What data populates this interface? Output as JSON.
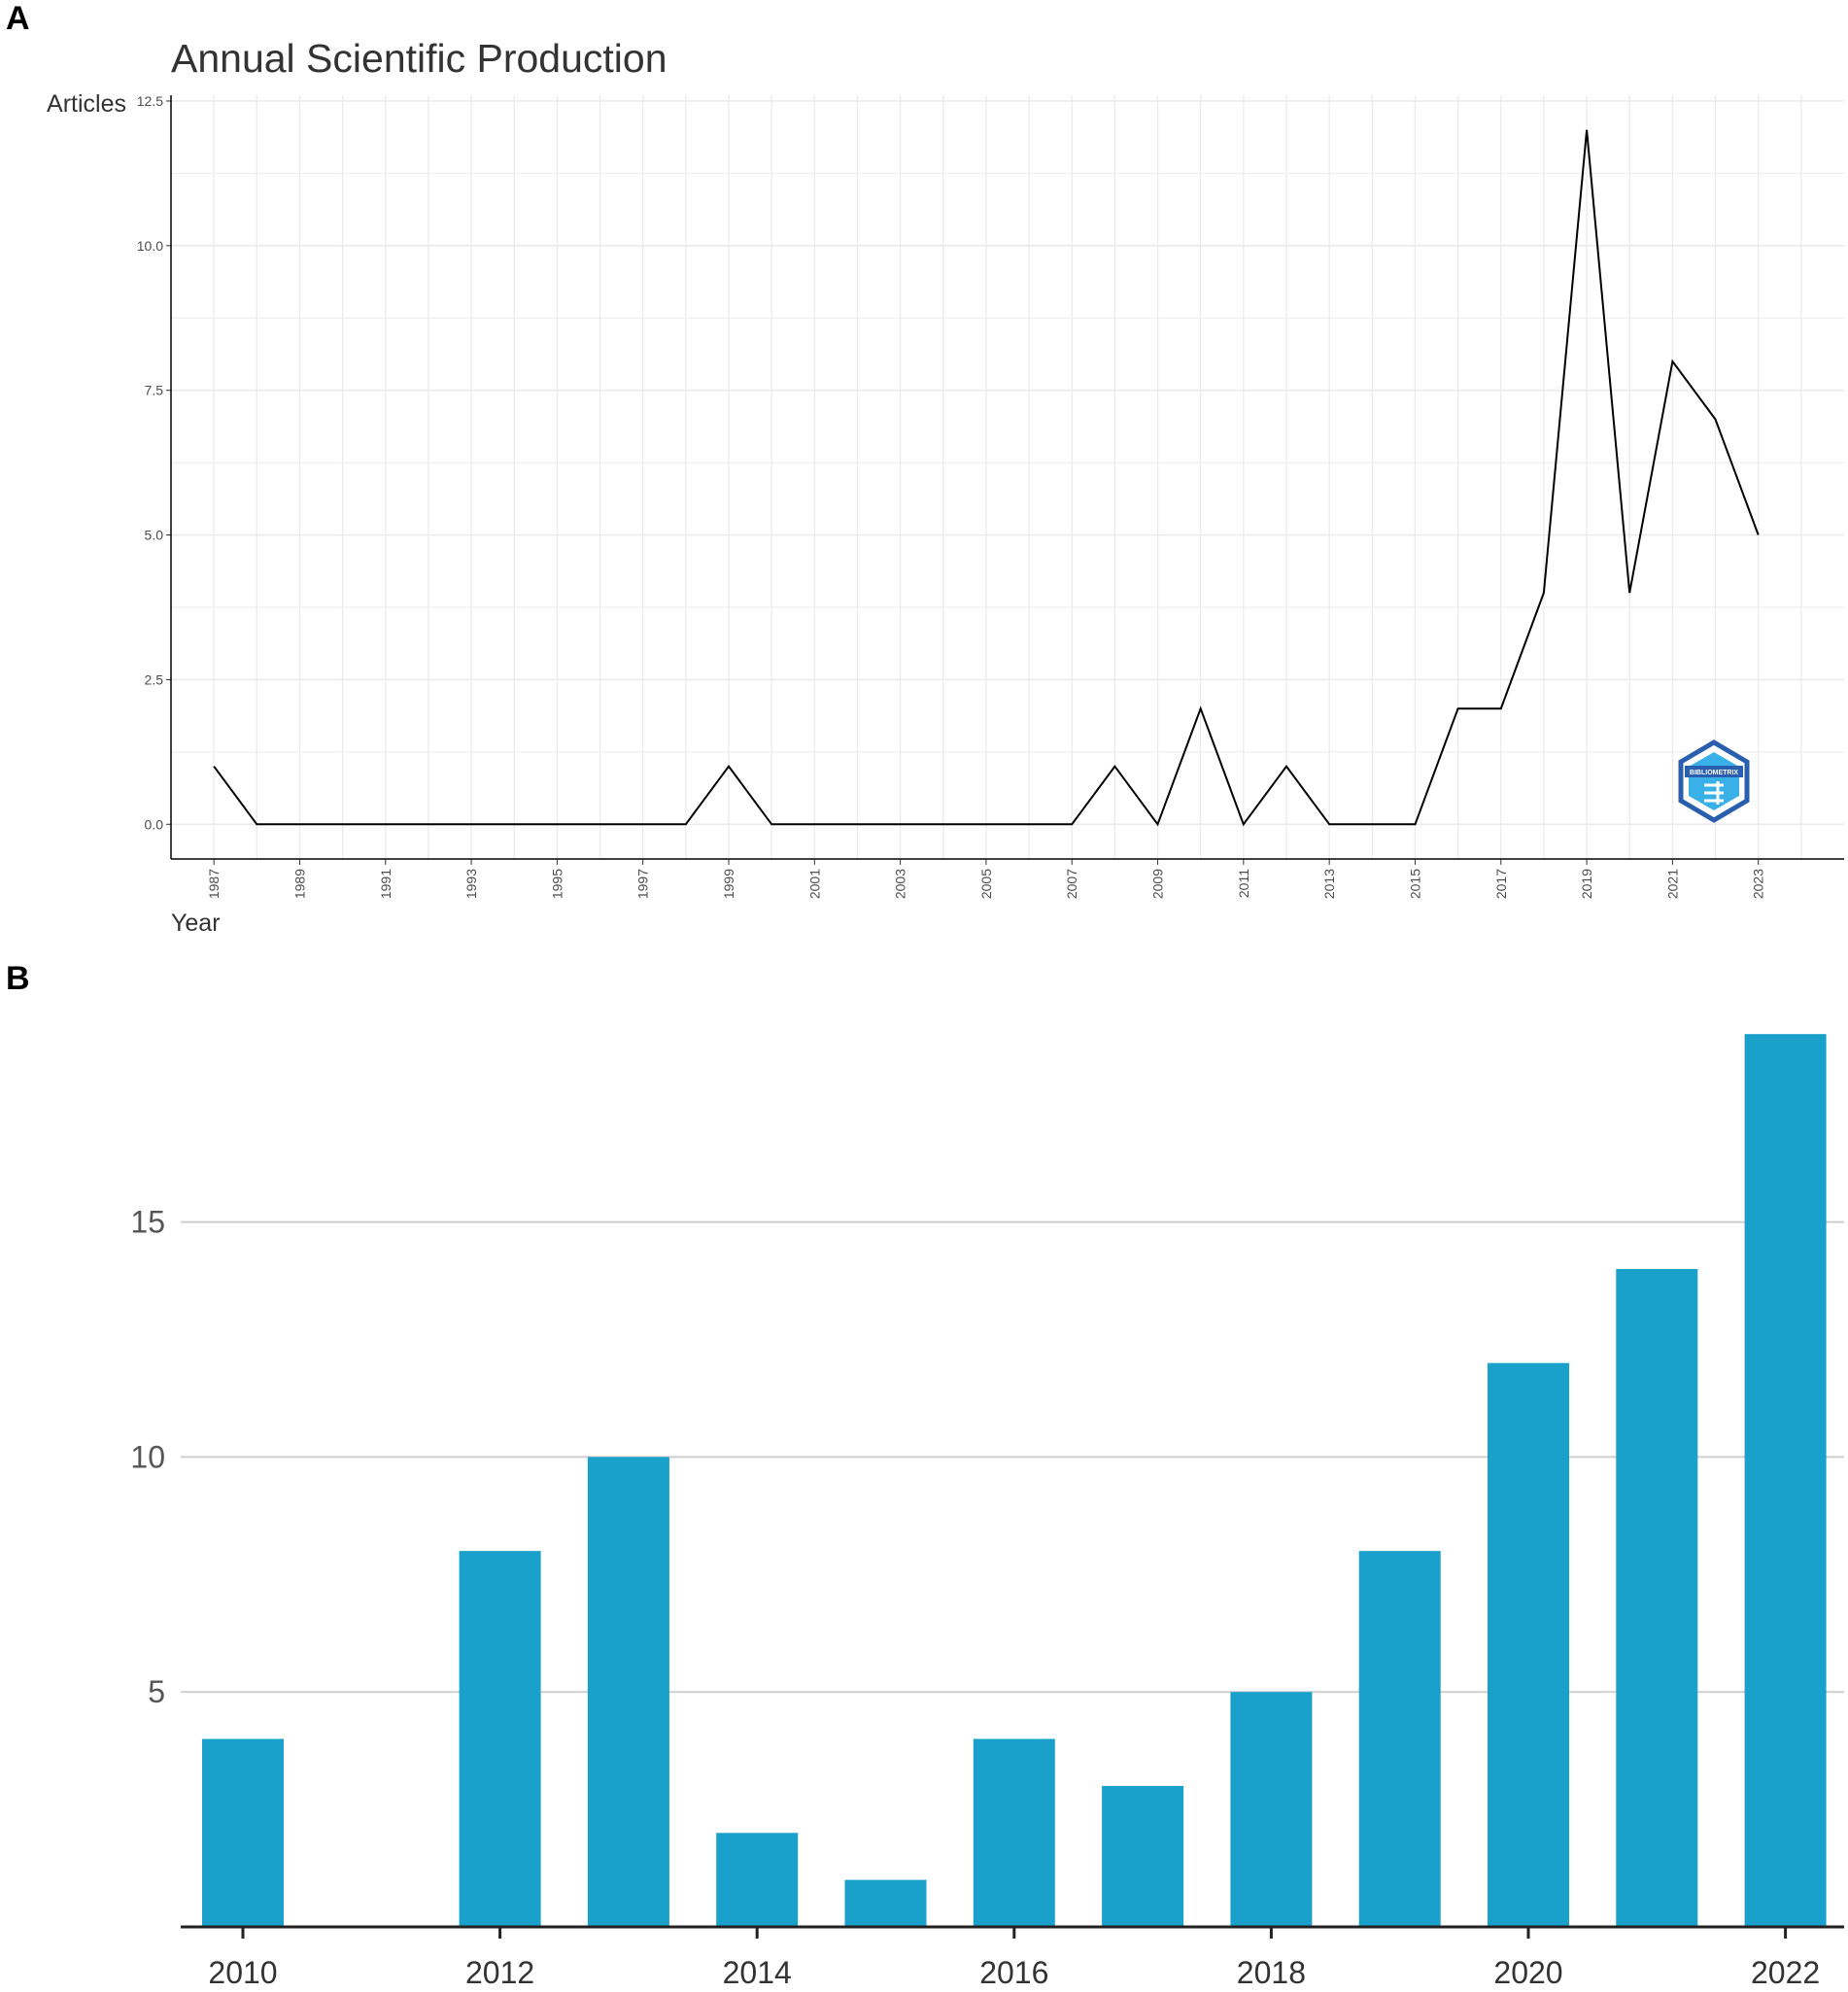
{
  "figure": {
    "panel_a_label": "A",
    "panel_b_label": "B"
  },
  "chart_data": [
    {
      "type": "line",
      "title": "Annual Scientific Production",
      "xlabel": "Year",
      "ylabel": "Articles",
      "x": [
        1987,
        1988,
        1989,
        1990,
        1991,
        1992,
        1993,
        1994,
        1995,
        1996,
        1997,
        1998,
        1999,
        2000,
        2001,
        2002,
        2003,
        2004,
        2005,
        2006,
        2007,
        2008,
        2009,
        2010,
        2011,
        2012,
        2013,
        2014,
        2015,
        2016,
        2017,
        2018,
        2019,
        2020,
        2021,
        2022,
        2023
      ],
      "series": [
        {
          "values": [
            1,
            0,
            0,
            0,
            0,
            0,
            0,
            0,
            0,
            0,
            0,
            0,
            1,
            0,
            0,
            0,
            0,
            0,
            0,
            0,
            0,
            1,
            0,
            2,
            0,
            1,
            0,
            0,
            0,
            2,
            2,
            4,
            12,
            4,
            8,
            7,
            5
          ]
        }
      ],
      "xlim": [
        1986,
        2025
      ],
      "ylim": [
        -0.6,
        12.6
      ],
      "x_ticks": [
        "1987",
        "1989",
        "1991",
        "1993",
        "1995",
        "1997",
        "1999",
        "2001",
        "2003",
        "2005",
        "2007",
        "2009",
        "2011",
        "2013",
        "2015",
        "2017",
        "2019",
        "2021",
        "2023"
      ],
      "y_ticks": [
        "0.0",
        "2.5",
        "5.0",
        "7.5",
        "10.0",
        "12.5"
      ],
      "grid": true,
      "line_color": "#000000",
      "grid_color": "#ebebeb",
      "logo": {
        "text": "BIBLIOMETRIX",
        "colors": [
          "#2a5fb0",
          "#3ab0e8"
        ]
      }
    },
    {
      "type": "bar",
      "categories": [
        "2010",
        "2011",
        "2012",
        "2013",
        "2014",
        "2015",
        "2016",
        "2017",
        "2018",
        "2019",
        "2020",
        "2021",
        "2022"
      ],
      "values": [
        4,
        0,
        8,
        10,
        2,
        1,
        4,
        3,
        5,
        8,
        12,
        14,
        19
      ],
      "x_ticks": [
        "2010",
        "2012",
        "2014",
        "2016",
        "2018",
        "2020",
        "2022"
      ],
      "y_ticks": [
        "5",
        "10",
        "15"
      ],
      "ylim": [
        0,
        19.5
      ],
      "grid": true,
      "bar_color": "#19a0cb",
      "grid_color": "#cfcfcf"
    }
  ]
}
